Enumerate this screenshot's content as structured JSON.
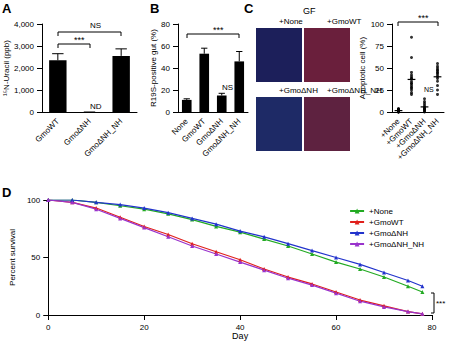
{
  "chart_data": [
    {
      "title": "A",
      "type": "bar",
      "categories": [
        "GmoWT",
        "GmoΔNH",
        "GmoΔNH_NH"
      ],
      "values": [
        2350,
        0,
        2550
      ],
      "errors": [
        300,
        0,
        320
      ],
      "color": "#000000",
      "ylabel": "¹⁵N-Uracil (ppb)",
      "ylim": [
        0,
        4000
      ],
      "yticks": [
        0,
        1000,
        2000,
        3000,
        4000
      ],
      "grid": false,
      "annotations": [
        "***",
        "NS",
        "ND"
      ]
    },
    {
      "title": "B",
      "type": "bar",
      "categories": [
        "None",
        "GmoWT",
        "GmoΔNH",
        "GmoΔNH_NH"
      ],
      "values": [
        11,
        53,
        15,
        46
      ],
      "errors": [
        1,
        5,
        2,
        9
      ],
      "color": "#000000",
      "ylabel": "R19S-positive gut (%)",
      "ylim": [
        0,
        80
      ],
      "yticks": [
        0,
        20,
        40,
        60,
        80
      ],
      "grid": false,
      "annotations": [
        "***",
        "NS"
      ]
    },
    {
      "title": "C",
      "subtitle": "GF",
      "type": "scatter",
      "categories": [
        "+None",
        "+GmoWT",
        "+GmoΔNH",
        "+GmoΔNH_NH"
      ],
      "values": [
        [
          0,
          1,
          1,
          2,
          2,
          3,
          0,
          1,
          2,
          4,
          1,
          0,
          3,
          2
        ],
        [
          85,
          62,
          45,
          42,
          40,
          38,
          35,
          33,
          30,
          28,
          25,
          22,
          20,
          38,
          32,
          27
        ],
        [
          0,
          2,
          3,
          5,
          8,
          10,
          12,
          15,
          4,
          6,
          1,
          3
        ],
        [
          55,
          50,
          48,
          45,
          42,
          40,
          38,
          35,
          30,
          25,
          20,
          44,
          47,
          52
        ]
      ],
      "means": [
        1.6,
        37,
        5.8,
        40
      ],
      "color": "#000000",
      "marker": "circle",
      "ylabel": "Apoptotic cell (%)",
      "ylim": [
        0,
        100
      ],
      "yticks": [
        0,
        25,
        50,
        75,
        100
      ],
      "grid": false,
      "annotations": [
        "***",
        "NS"
      ]
    },
    {
      "title": "D",
      "type": "line",
      "x": [
        0,
        5,
        10,
        15,
        20,
        25,
        30,
        35,
        40,
        45,
        50,
        55,
        60,
        65,
        70,
        75,
        78
      ],
      "series": [
        {
          "name": "+None",
          "color": "#22aa22",
          "values": [
            100,
            100,
            98,
            95,
            92,
            88,
            83,
            77,
            72,
            66,
            60,
            53,
            46,
            40,
            33,
            25,
            20
          ]
        },
        {
          "name": "+GmoWT",
          "color": "#e0201c",
          "values": [
            100,
            98,
            93,
            85,
            77,
            70,
            62,
            55,
            48,
            40,
            33,
            27,
            20,
            13,
            8,
            3,
            1
          ]
        },
        {
          "name": "+GmoΔNH",
          "color": "#2233cc",
          "values": [
            100,
            100,
            98,
            96,
            93,
            89,
            84,
            79,
            73,
            68,
            62,
            56,
            50,
            44,
            37,
            30,
            25
          ]
        },
        {
          "name": "+GmoΔNH_NH",
          "color": "#9933cc",
          "values": [
            100,
            98,
            92,
            84,
            76,
            68,
            60,
            53,
            46,
            39,
            32,
            26,
            19,
            12,
            7,
            3,
            1
          ]
        }
      ],
      "xlabel": "Day",
      "ylabel": "Percent survival",
      "xlim": [
        0,
        80
      ],
      "xticks": [
        0,
        20,
        40,
        60,
        80
      ],
      "ylim": [
        0,
        100
      ],
      "yticks": [
        0,
        50,
        100
      ],
      "grid": false,
      "legend": "upper right",
      "marker": "triangle",
      "annotations": [
        "***"
      ]
    }
  ]
}
